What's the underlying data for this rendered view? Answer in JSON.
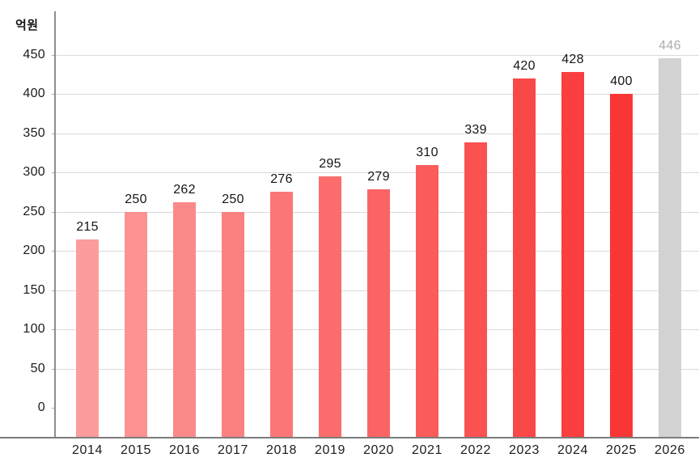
{
  "chart_data": {
    "type": "bar",
    "ylabel": "억원",
    "xlabel": "",
    "categories": [
      "2014",
      "2015",
      "2016",
      "2017",
      "2018",
      "2019",
      "2020",
      "2021",
      "2022",
      "2023",
      "2024",
      "2025",
      "2026"
    ],
    "values": [
      215,
      250,
      262,
      250,
      276,
      295,
      279,
      310,
      339,
      420,
      428,
      400,
      446
    ],
    "bar_colors": [
      "#FC9C9C",
      "#FC9292",
      "#FB8989",
      "#FB8080",
      "#FB7676",
      "#FB6D6D",
      "#FA6464",
      "#FA5B5B",
      "#FA5151",
      "#F94848",
      "#F93F3F",
      "#F93636",
      "#D2D2D2"
    ],
    "value_label_colors": [
      "#161616",
      "#161616",
      "#161616",
      "#161616",
      "#161616",
      "#161616",
      "#161616",
      "#161616",
      "#161616",
      "#161616",
      "#161616",
      "#161616",
      "#ABABAB"
    ],
    "yticks": [
      0,
      50,
      100,
      150,
      200,
      250,
      300,
      350,
      400,
      450
    ],
    "ylim": [
      0,
      450
    ],
    "grid": true
  },
  "style": {
    "background": "#FFFFFF",
    "gridline_color": "#DBDBDB",
    "tick_mark_color": "#ACACAC",
    "axis_line_color": "#8E8E8E",
    "baseline_color": "#7C7C7C",
    "tick_label_color": "#1C1C1C",
    "muted_label_color": "#ABABAB"
  }
}
